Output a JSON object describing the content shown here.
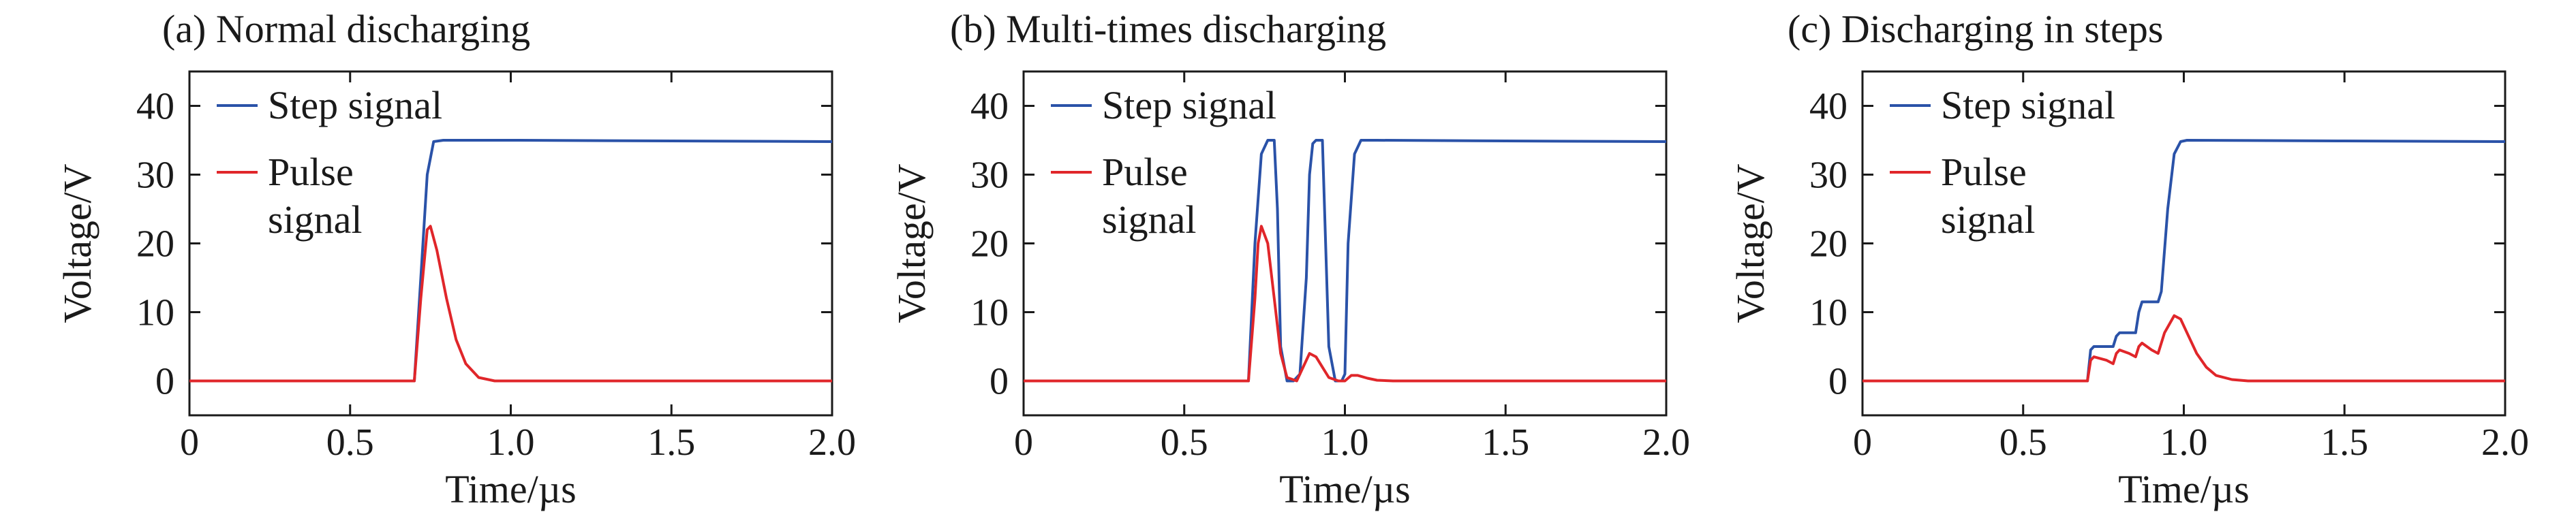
{
  "chart_data": [
    {
      "type": "line",
      "title": "(a) Normal discharging",
      "xlabel": "Time/µs",
      "ylabel": "Voltage/V",
      "xlim": [
        0,
        2.0
      ],
      "ylim": [
        -5,
        45
      ],
      "xticks": [
        0,
        0.5,
        1.0,
        1.5,
        2.0
      ],
      "xtick_labels": [
        "0",
        "0.5",
        "1.0",
        "1.5",
        "2.0"
      ],
      "yticks": [
        0,
        10,
        20,
        30,
        40
      ],
      "ytick_labels": [
        "0",
        "10",
        "20",
        "30",
        "40"
      ],
      "legend_position": "top-left",
      "series": [
        {
          "name": "Step signal",
          "color": "#2a52a8",
          "x": [
            0,
            0.7,
            0.72,
            0.74,
            0.76,
            0.79,
            1.0,
            1.5,
            2.0
          ],
          "y": [
            0,
            0,
            15,
            30,
            34.8,
            35,
            35,
            34.9,
            34.8
          ]
        },
        {
          "name": "Pulse signal",
          "color": "#e0262a",
          "x": [
            0,
            0.7,
            0.72,
            0.74,
            0.75,
            0.77,
            0.8,
            0.83,
            0.86,
            0.9,
            0.95,
            1.0,
            2.0
          ],
          "y": [
            0,
            0,
            12,
            22,
            22.5,
            19,
            12,
            6,
            2.5,
            0.5,
            0,
            0,
            0
          ]
        }
      ]
    },
    {
      "type": "line",
      "title": "(b) Multi-times discharging",
      "xlabel": "Time/µs",
      "ylabel": "Voltage/V",
      "xlim": [
        0,
        2.0
      ],
      "ylim": [
        -5,
        45
      ],
      "xticks": [
        0,
        0.5,
        1.0,
        1.5,
        2.0
      ],
      "xtick_labels": [
        "0",
        "0.5",
        "1.0",
        "1.5",
        "2.0"
      ],
      "yticks": [
        0,
        10,
        20,
        30,
        40
      ],
      "ytick_labels": [
        "0",
        "10",
        "20",
        "30",
        "40"
      ],
      "legend_position": "top-left",
      "series": [
        {
          "name": "Step signal",
          "color": "#2a52a8",
          "x": [
            0,
            0.7,
            0.72,
            0.74,
            0.76,
            0.78,
            0.79,
            0.8,
            0.82,
            0.84,
            0.86,
            0.88,
            0.89,
            0.9,
            0.91,
            0.93,
            0.94,
            0.95,
            0.97,
            0.99,
            1.0,
            1.01,
            1.03,
            1.05,
            1.1,
            1.5,
            2.0
          ],
          "y": [
            0,
            0,
            20,
            33,
            35,
            35,
            25,
            5,
            0,
            0,
            1,
            15,
            30,
            34.5,
            35,
            35,
            20,
            5,
            0,
            0,
            1,
            20,
            33,
            35,
            35,
            34.9,
            34.8
          ]
        },
        {
          "name": "Pulse signal",
          "color": "#e0262a",
          "x": [
            0,
            0.7,
            0.72,
            0.73,
            0.74,
            0.76,
            0.78,
            0.8,
            0.82,
            0.85,
            0.87,
            0.89,
            0.91,
            0.93,
            0.95,
            0.98,
            1.0,
            1.02,
            1.04,
            1.07,
            1.1,
            1.15,
            2.0
          ],
          "y": [
            0,
            0,
            12,
            20,
            22.5,
            20,
            12,
            4,
            0.5,
            0,
            2,
            4,
            3.5,
            2,
            0.5,
            0,
            0,
            0.8,
            0.8,
            0.4,
            0.1,
            0,
            0
          ]
        }
      ]
    },
    {
      "type": "line",
      "title": "(c) Discharging in steps",
      "xlabel": "Time/µs",
      "ylabel": "Voltage/V",
      "xlim": [
        0,
        2.0
      ],
      "ylim": [
        -5,
        45
      ],
      "xticks": [
        0,
        0.5,
        1.0,
        1.5,
        2.0
      ],
      "xtick_labels": [
        "0",
        "0.5",
        "1.0",
        "1.5",
        "2.0"
      ],
      "yticks": [
        0,
        10,
        20,
        30,
        40
      ],
      "ytick_labels": [
        "0",
        "10",
        "20",
        "30",
        "40"
      ],
      "legend_position": "top-left",
      "series": [
        {
          "name": "Step signal",
          "color": "#2a52a8",
          "x": [
            0,
            0.7,
            0.71,
            0.72,
            0.78,
            0.79,
            0.8,
            0.85,
            0.86,
            0.87,
            0.92,
            0.93,
            0.95,
            0.97,
            0.99,
            1.01,
            1.5,
            2.0
          ],
          "y": [
            0,
            0,
            4.5,
            5,
            5,
            6.5,
            7,
            7,
            10,
            11.5,
            11.5,
            13,
            25,
            33,
            34.8,
            35,
            34.9,
            34.8
          ]
        },
        {
          "name": "Pulse signal",
          "color": "#e0262a",
          "x": [
            0,
            0.7,
            0.71,
            0.72,
            0.76,
            0.78,
            0.79,
            0.8,
            0.83,
            0.85,
            0.86,
            0.87,
            0.9,
            0.92,
            0.94,
            0.97,
            0.99,
            1.01,
            1.04,
            1.07,
            1.1,
            1.15,
            1.2,
            2.0
          ],
          "y": [
            0,
            0,
            3,
            3.5,
            3,
            2.5,
            4,
            4.5,
            4,
            3.5,
            5,
            5.5,
            4.5,
            4,
            7,
            9.5,
            9,
            7,
            4,
            2,
            0.8,
            0.2,
            0,
            0
          ]
        }
      ]
    }
  ]
}
